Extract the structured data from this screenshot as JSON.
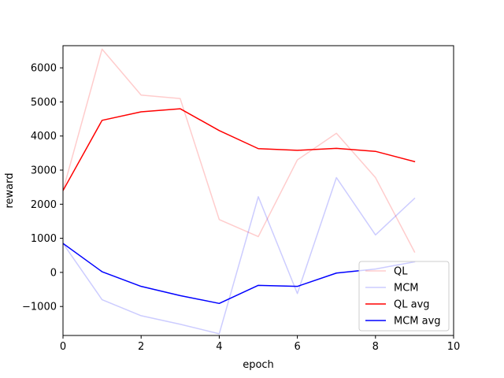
{
  "chart_data": {
    "type": "line",
    "title": "",
    "xlabel": "epoch",
    "ylabel": "reward",
    "xlim": [
      0,
      10
    ],
    "ylim": [
      -1850,
      6650
    ],
    "xticks": [
      0,
      2,
      4,
      6,
      8,
      10
    ],
    "yticks": [
      -1000,
      0,
      1000,
      2000,
      3000,
      4000,
      5000,
      6000
    ],
    "grid": false,
    "legend_position": "lower-right",
    "series": [
      {
        "name": "QL",
        "color": "#ff0000",
        "alpha": 0.2,
        "x": [
          0,
          1,
          2,
          3,
          4,
          5,
          6,
          7,
          8,
          9
        ],
        "values": [
          2400,
          6550,
          5200,
          5100,
          1550,
          1050,
          3300,
          4080,
          2780,
          600
        ]
      },
      {
        "name": "MCM",
        "color": "#0000ff",
        "alpha": 0.2,
        "x": [
          0,
          1,
          2,
          3,
          4,
          5,
          6,
          7,
          8,
          9
        ],
        "values": [
          850,
          -800,
          -1270,
          -1520,
          -1800,
          2220,
          -620,
          2780,
          1100,
          2170
        ]
      },
      {
        "name": "QL avg",
        "color": "#ff0000",
        "alpha": 1,
        "x": [
          0,
          1,
          2,
          3,
          4,
          5,
          6,
          7,
          8,
          9
        ],
        "values": [
          2400,
          4460,
          4710,
          4800,
          4160,
          3630,
          3580,
          3640,
          3550,
          3250
        ]
      },
      {
        "name": "MCM avg",
        "color": "#0000ff",
        "alpha": 1,
        "x": [
          0,
          1,
          2,
          3,
          4,
          5,
          6,
          7,
          8,
          9
        ],
        "values": [
          850,
          20,
          -410,
          -680,
          -910,
          -380,
          -410,
          -20,
          100,
          310
        ]
      }
    ]
  }
}
